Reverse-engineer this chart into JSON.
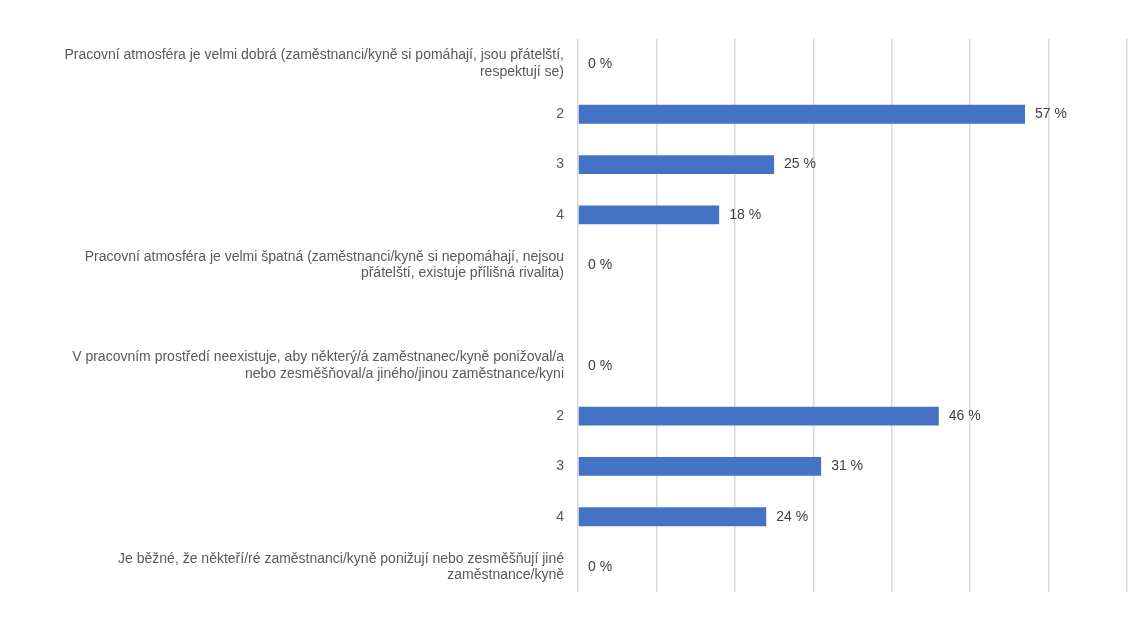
{
  "chart_data": {
    "type": "bar",
    "orientation": "horizontal",
    "categories": [
      "Pracovní atmosféra je velmi dobrá (zaměstnanci/kyně si pomáhají, jsou přátelští, respektují se)",
      "2",
      "3",
      "4",
      "Pracovní atmosféra je velmi špatná (zaměstnanci/kyně si nepomáhají, nejsou přátelští, existuje přílišná rivalita)",
      null,
      "V pracovním prostředí neexistuje, aby některý/á zaměstnanec/kyně ponižoval/a nebo zesměšňoval/a jiného/jinou zaměstnance/kyni",
      "2",
      "3",
      "4",
      "Je běžné, že někteří/ré zaměstnanci/kyně ponižují nebo zesměšňují jiné zaměstnance/kyně"
    ],
    "values": [
      0,
      57,
      25,
      18,
      0,
      null,
      0,
      46,
      31,
      24,
      0
    ],
    "value_labels": [
      "0 %",
      "57 %",
      "25 %",
      "18 %",
      "0 %",
      null,
      "0 %",
      "46 %",
      "31 %",
      "24 %",
      "0 %"
    ],
    "color": "#4472c4",
    "xlim": [
      0,
      70
    ],
    "xticks": [
      {
        "value": 0,
        "label": null
      },
      {
        "value": 10,
        "label": null
      },
      {
        "value": 20,
        "label": null
      },
      {
        "value": 30,
        "label": null
      },
      {
        "value": 40,
        "label": null
      },
      {
        "value": 50,
        "label": null
      },
      {
        "value": 60,
        "label": null
      },
      {
        "value": 70,
        "label": null
      }
    ],
    "grid": "x",
    "tick_labels": "y"
  }
}
